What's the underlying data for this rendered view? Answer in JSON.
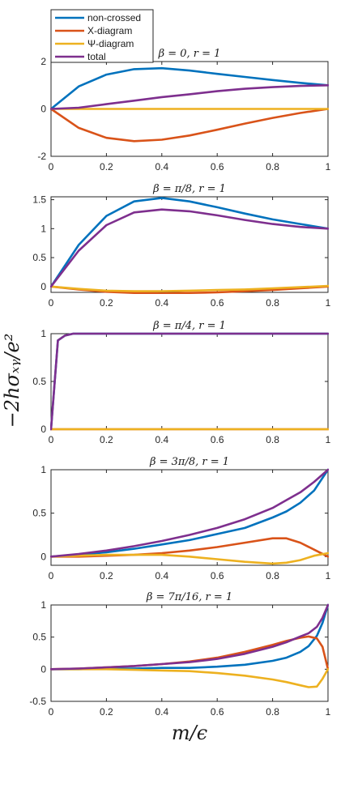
{
  "figure": {
    "ylabel": "−2hσₓᵧ/e²",
    "xlabel": "m/ϵ"
  },
  "legend": {
    "entries": [
      "non-crossed",
      "X-diagram",
      "Ψ-diagram",
      "total"
    ],
    "placement": "top-left"
  },
  "chart_data": [
    {
      "type": "line",
      "title": "β = 0, r = 1",
      "xlabel": "m/ϵ",
      "ylabel": "−2hσxy/e²",
      "xlim": [
        0,
        1
      ],
      "ylim": [
        -2,
        2
      ],
      "xticks": [
        "0",
        "0.2",
        "0.4",
        "0.6",
        "0.8",
        "1"
      ],
      "yticks": [
        "-2",
        "0",
        "2"
      ],
      "ytick_values": [
        -2,
        0,
        2
      ],
      "x": [
        0,
        0.1,
        0.2,
        0.3,
        0.4,
        0.5,
        0.6,
        0.7,
        0.8,
        0.9,
        1.0
      ],
      "series": [
        {
          "name": "non-crossed",
          "color": "#0072BD",
          "values": [
            0,
            0.95,
            1.45,
            1.68,
            1.72,
            1.62,
            1.48,
            1.35,
            1.22,
            1.1,
            1.0
          ]
        },
        {
          "name": "X-diagram",
          "color": "#D95319",
          "values": [
            0,
            -0.8,
            -1.22,
            -1.36,
            -1.3,
            -1.12,
            -0.88,
            -0.62,
            -0.38,
            -0.17,
            0
          ]
        },
        {
          "name": "Ψ-diagram",
          "color": "#EDB120",
          "values": [
            0,
            0,
            0,
            0,
            0,
            0,
            0,
            0,
            0,
            0,
            0
          ]
        },
        {
          "name": "total",
          "color": "#7E2F8E",
          "values": [
            0,
            0.05,
            0.2,
            0.35,
            0.5,
            0.62,
            0.75,
            0.85,
            0.92,
            0.97,
            1.0
          ]
        }
      ]
    },
    {
      "type": "line",
      "title": "β = π/8, r = 1",
      "xlim": [
        0,
        1
      ],
      "ylim": [
        -0.1,
        1.55
      ],
      "xticks": [
        "0",
        "0.2",
        "0.4",
        "0.6",
        "0.8",
        "1"
      ],
      "yticks": [
        "0",
        "0.5",
        "1",
        "1.5"
      ],
      "ytick_values": [
        0,
        0.5,
        1,
        1.5
      ],
      "x": [
        0,
        0.1,
        0.2,
        0.3,
        0.4,
        0.5,
        0.6,
        0.7,
        0.8,
        0.9,
        1.0
      ],
      "series": [
        {
          "name": "non-crossed",
          "color": "#0072BD",
          "values": [
            0,
            0.72,
            1.22,
            1.47,
            1.53,
            1.47,
            1.37,
            1.26,
            1.16,
            1.08,
            1.0
          ]
        },
        {
          "name": "X-diagram",
          "color": "#D95319",
          "values": [
            0,
            -0.05,
            -0.09,
            -0.11,
            -0.12,
            -0.11,
            -0.1,
            -0.08,
            -0.06,
            -0.03,
            0
          ]
        },
        {
          "name": "Ψ-diagram",
          "color": "#EDB120",
          "values": [
            0,
            -0.04,
            -0.07,
            -0.08,
            -0.08,
            -0.07,
            -0.06,
            -0.05,
            -0.03,
            -0.01,
            0.01
          ]
        },
        {
          "name": "total",
          "color": "#7E2F8E",
          "values": [
            0,
            0.62,
            1.06,
            1.28,
            1.33,
            1.3,
            1.23,
            1.15,
            1.08,
            1.03,
            1.0
          ]
        }
      ]
    },
    {
      "type": "line",
      "title": "β = π/4, r = 1",
      "xlim": [
        0,
        1
      ],
      "ylim": [
        0,
        1
      ],
      "xticks": [
        "0",
        "0.2",
        "0.4",
        "0.6",
        "0.8",
        "1"
      ],
      "yticks": [
        "0",
        "0.5",
        "1"
      ],
      "ytick_values": [
        0,
        0.5,
        1
      ],
      "x": [
        0,
        0.025,
        0.05,
        0.08,
        0.1,
        0.2,
        0.4,
        0.6,
        0.8,
        1.0
      ],
      "series": [
        {
          "name": "non-crossed",
          "color": "#0072BD",
          "values": [
            0,
            0.93,
            0.98,
            1.0,
            1.0,
            1.0,
            1.0,
            1.0,
            1.0,
            1.0
          ]
        },
        {
          "name": "X-diagram",
          "color": "#D95319",
          "values": [
            0,
            0,
            0,
            0,
            0,
            0,
            0,
            0,
            0,
            0
          ]
        },
        {
          "name": "Ψ-diagram",
          "color": "#EDB120",
          "values": [
            0,
            0,
            0,
            0,
            0,
            0,
            0,
            0,
            0,
            0
          ]
        },
        {
          "name": "total",
          "color": "#7E2F8E",
          "values": [
            0,
            0.93,
            0.98,
            1.0,
            1.0,
            1.0,
            1.0,
            1.0,
            1.0,
            1.0
          ]
        }
      ]
    },
    {
      "type": "line",
      "title": "β = 3π/8, r = 1",
      "xlim": [
        0,
        1
      ],
      "ylim": [
        -0.1,
        1
      ],
      "xticks": [
        "0",
        "0.2",
        "0.4",
        "0.6",
        "0.8",
        "1"
      ],
      "yticks": [
        "0",
        "0.5",
        "1"
      ],
      "ytick_values": [
        0,
        0.5,
        1
      ],
      "x": [
        0,
        0.1,
        0.2,
        0.3,
        0.4,
        0.5,
        0.6,
        0.7,
        0.8,
        0.85,
        0.9,
        0.95,
        1.0
      ],
      "series": [
        {
          "name": "non-crossed",
          "color": "#0072BD",
          "values": [
            0,
            0.02,
            0.05,
            0.09,
            0.14,
            0.19,
            0.26,
            0.33,
            0.45,
            0.52,
            0.62,
            0.76,
            1.0
          ]
        },
        {
          "name": "X-diagram",
          "color": "#D95319",
          "values": [
            0,
            0.0,
            0.01,
            0.02,
            0.04,
            0.07,
            0.11,
            0.16,
            0.21,
            0.21,
            0.16,
            0.08,
            0.0
          ]
        },
        {
          "name": "Ψ-diagram",
          "color": "#EDB120",
          "values": [
            0,
            0.01,
            0.02,
            0.02,
            0.02,
            0.0,
            -0.03,
            -0.06,
            -0.08,
            -0.07,
            -0.04,
            0.01,
            0.04
          ]
        },
        {
          "name": "total",
          "color": "#7E2F8E",
          "values": [
            0,
            0.03,
            0.07,
            0.12,
            0.18,
            0.25,
            0.33,
            0.43,
            0.56,
            0.65,
            0.74,
            0.86,
            1.0
          ]
        }
      ]
    },
    {
      "type": "line",
      "title": "β = 7π/16, r = 1",
      "xlim": [
        0,
        1
      ],
      "ylim": [
        -0.5,
        1
      ],
      "xticks": [
        "0",
        "0.2",
        "0.4",
        "0.6",
        "0.8",
        "1"
      ],
      "yticks": [
        "-0.5",
        "0",
        "0.5",
        "1"
      ],
      "ytick_values": [
        -0.5,
        0,
        0.5,
        1
      ],
      "x": [
        0,
        0.1,
        0.2,
        0.3,
        0.4,
        0.5,
        0.6,
        0.7,
        0.8,
        0.85,
        0.9,
        0.93,
        0.96,
        0.98,
        1.0
      ],
      "series": [
        {
          "name": "non-crossed",
          "color": "#0072BD",
          "values": [
            0,
            0.0,
            0.01,
            0.01,
            0.02,
            0.02,
            0.04,
            0.07,
            0.13,
            0.18,
            0.27,
            0.36,
            0.52,
            0.72,
            1.0
          ]
        },
        {
          "name": "X-diagram",
          "color": "#D95319",
          "values": [
            0,
            0.01,
            0.03,
            0.05,
            0.08,
            0.12,
            0.18,
            0.27,
            0.38,
            0.44,
            0.49,
            0.51,
            0.48,
            0.35,
            0.0
          ]
        },
        {
          "name": "Ψ-diagram",
          "color": "#EDB120",
          "values": [
            0,
            0.0,
            0.0,
            -0.01,
            -0.02,
            -0.03,
            -0.06,
            -0.1,
            -0.16,
            -0.2,
            -0.25,
            -0.28,
            -0.27,
            -0.15,
            0.0
          ]
        },
        {
          "name": "total",
          "color": "#7E2F8E",
          "values": [
            0,
            0.01,
            0.03,
            0.05,
            0.08,
            0.11,
            0.16,
            0.24,
            0.35,
            0.42,
            0.51,
            0.56,
            0.66,
            0.8,
            1.0
          ]
        }
      ]
    }
  ]
}
